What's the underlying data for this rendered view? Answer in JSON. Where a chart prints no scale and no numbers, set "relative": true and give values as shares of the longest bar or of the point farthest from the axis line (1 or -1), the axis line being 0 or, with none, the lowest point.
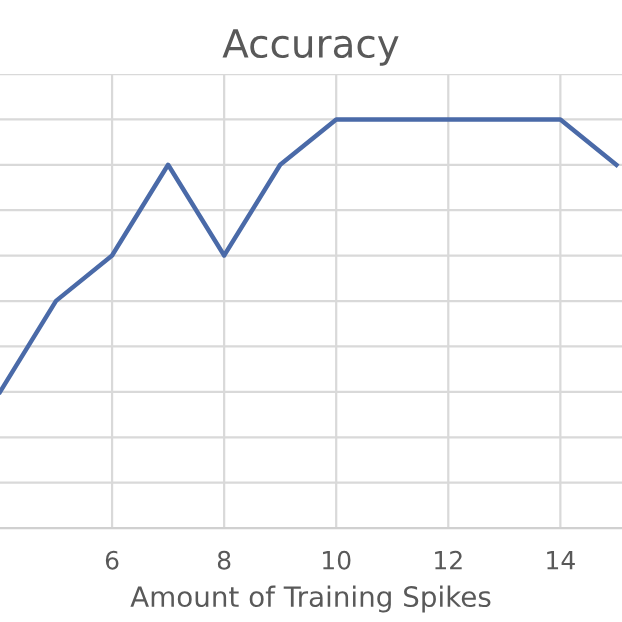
{
  "chart_data": {
    "type": "line",
    "title": "Accuracy",
    "xlabel": "Amount of Training Spikes",
    "relative": true,
    "x": [
      4,
      5,
      6,
      7,
      8,
      9,
      10,
      11,
      12,
      13,
      14,
      15
    ],
    "series": [
      {
        "color": "#4a6aa8",
        "values": [
          0.333,
          0.556,
          0.667,
          0.889,
          0.667,
          0.889,
          1,
          1,
          1,
          1,
          1,
          0.889
        ]
      }
    ],
    "xlim": [
      4,
      15.1
    ],
    "xticks": [
      6,
      8,
      10,
      12,
      14
    ],
    "grid": true,
    "marker": "none",
    "line_style": "solid"
  }
}
